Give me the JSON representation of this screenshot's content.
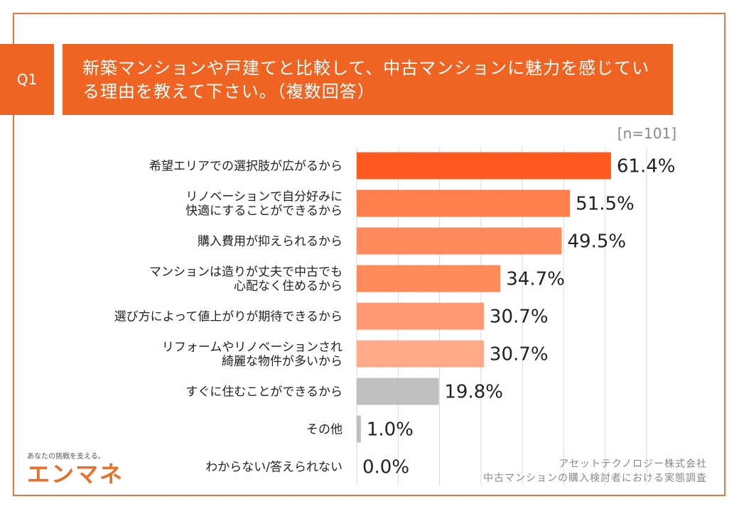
{
  "question": {
    "number": "Q1",
    "text": "新築マンションや戸建てと比較して、中古マンションに魅力を感じている理由を教えて下さい。（複数回答）"
  },
  "sample_size": "[n=101]",
  "chart_data": {
    "type": "bar",
    "orientation": "horizontal",
    "categories": [
      [
        "希望エリアでの選択肢が広がるから"
      ],
      [
        "リノベーションで自分好みに",
        "快適にすることができるから"
      ],
      [
        "購入費用が抑えられるから"
      ],
      [
        "マンションは造りが丈夫で中古でも",
        "心配なく住めるから"
      ],
      [
        "選び方によって値上がりが期待できるから"
      ],
      [
        "リフォームやリノベーションされ",
        "綺麗な物件が多いから"
      ],
      [
        "すぐに住むことができるから"
      ],
      [
        "その他"
      ],
      [
        "わからない/答えられない"
      ]
    ],
    "values": [
      61.4,
      51.5,
      49.5,
      34.7,
      30.7,
      30.7,
      19.8,
      1.0,
      0.0
    ],
    "value_labels": [
      "61.4%",
      "51.5%",
      "49.5%",
      "34.7%",
      "30.7%",
      "30.7%",
      "19.8%",
      "1.0%",
      "0.0%"
    ],
    "colors": [
      "#FF5A1F",
      "#FF7F4C",
      "#FF8A5C",
      "#FF8A5C",
      "#FF9870",
      "#FFAA88",
      "#BFBFBF",
      "#BFBFBF",
      "#BFBFBF"
    ],
    "xlim": [
      0,
      70
    ],
    "grid_step": 10,
    "grid": true
  },
  "source": [
    "アセットテクノロジー株式会社",
    "中古マンションの購入検討者における実態調査"
  ],
  "logo": {
    "tagline": "あなたの挑戦を支える。",
    "name": "エンマネ"
  }
}
